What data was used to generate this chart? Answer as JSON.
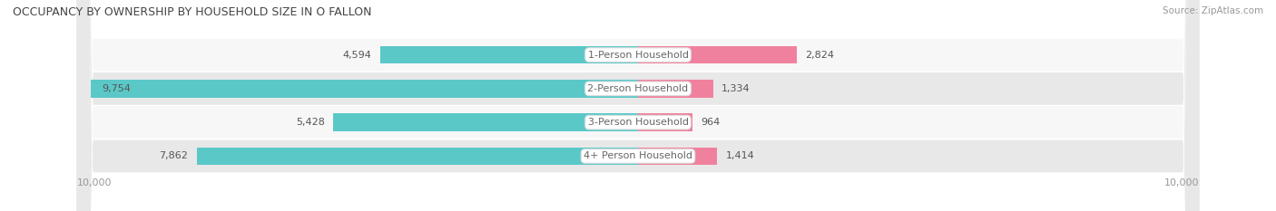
{
  "title": "OCCUPANCY BY OWNERSHIP BY HOUSEHOLD SIZE IN O FALLON",
  "source": "Source: ZipAtlas.com",
  "categories": [
    "1-Person Household",
    "2-Person Household",
    "3-Person Household",
    "4+ Person Household"
  ],
  "owner_values": [
    4594,
    9754,
    5428,
    7862
  ],
  "renter_values": [
    2824,
    1334,
    964,
    1414
  ],
  "max_scale": 10000,
  "owner_color": "#5bc8c8",
  "renter_color": "#f0819e",
  "row_bg_even": "#f7f7f7",
  "row_bg_odd": "#e8e8e8",
  "label_color": "#555555",
  "axis_label_color": "#999999",
  "center_label_color": "#666666",
  "legend_owner_color": "#5bc8c8",
  "legend_renter_color": "#f0819e",
  "bg_color": "#ffffff",
  "title_color": "#444444",
  "source_color": "#999999"
}
